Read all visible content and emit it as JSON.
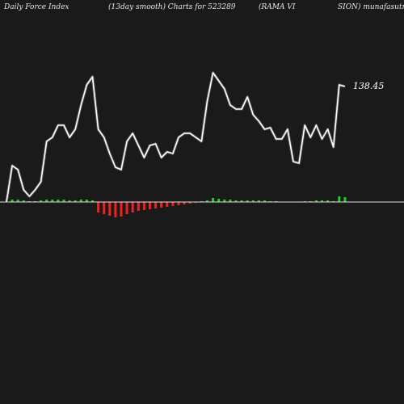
{
  "header": {
    "part1": "Daily Force  Index",
    "part2": "(13day smooth) Charts for 523289",
    "part3": "(RAMA VI",
    "part4": "SION) munafasutra.com"
  },
  "chart_data": {
    "type": "line",
    "title": "Daily Force  Index (13day smooth) Charts for 523289 (RAMA VISION) munafasutra.com",
    "last_value_label": "138.45",
    "colors": {
      "background": "#1a1a1a",
      "line": "#ffffff",
      "line_outline": "#555555",
      "positive_bar": "#22cc22",
      "negative_bar": "#ee2222",
      "zero_line": "#dddddd",
      "header_text": "#e8e8e8"
    },
    "series": [
      {
        "values": [
          0,
          45,
          40,
          15,
          7,
          15,
          25,
          75,
          80,
          95,
          95,
          80,
          90,
          120,
          145,
          155,
          90,
          80,
          60,
          43,
          40,
          75,
          85,
          70,
          55,
          70,
          72,
          55,
          62,
          60,
          80,
          85,
          85,
          80,
          75,
          125,
          160,
          150,
          140,
          120,
          115,
          115,
          130,
          108,
          100,
          90,
          92,
          78,
          78,
          90,
          50,
          48,
          95,
          80,
          95,
          78,
          90,
          68,
          145,
          143
        ]
      },
      {
        "values": [
          0,
          3,
          3,
          2,
          1,
          1,
          2,
          3,
          3,
          3,
          3,
          2,
          2,
          3,
          3,
          2,
          -13,
          -15,
          -17,
          -19,
          -18,
          -15,
          -13,
          -11,
          -10,
          -9,
          -8,
          -7,
          -6,
          -5,
          -4,
          -3,
          -2,
          -1,
          1,
          2,
          5,
          4,
          3,
          3,
          2,
          2,
          2,
          2,
          2,
          2,
          1,
          1,
          0,
          0,
          0,
          0,
          1,
          1,
          2,
          2,
          2,
          1,
          7,
          6
        ]
      }
    ]
  }
}
